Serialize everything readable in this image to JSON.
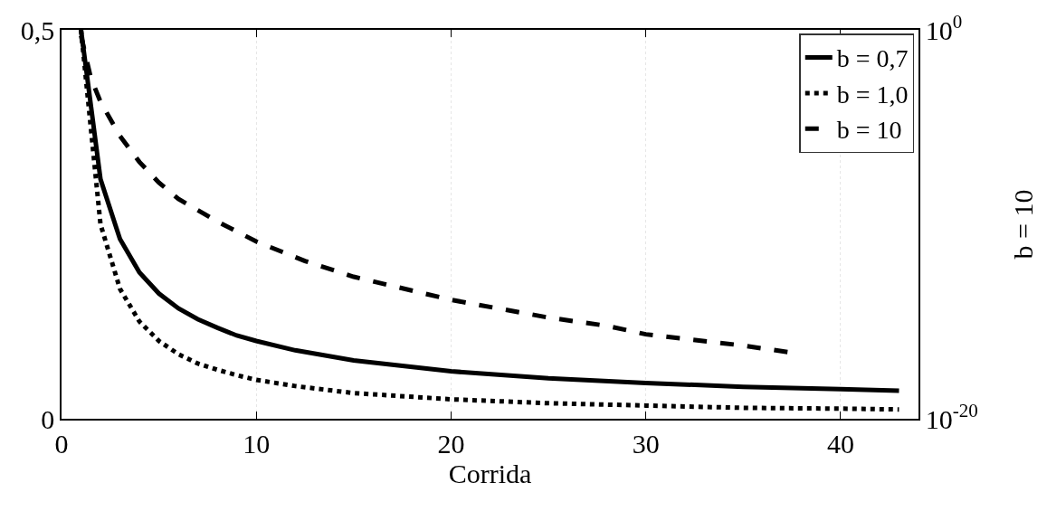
{
  "chart_data": {
    "type": "line",
    "xlabel": "Corrida",
    "y2label": "b = 10",
    "xlim": [
      0,
      44
    ],
    "xticks": [
      0,
      10,
      20,
      30,
      40
    ],
    "ylim": [
      0,
      0.5
    ],
    "yticks": [
      0,
      {
        "value": 0.5,
        "label": "0,5"
      }
    ],
    "y2lim": [
      1e-20,
      1
    ],
    "y2ticks": [
      {
        "value": 1e-20,
        "label": "10$^{-20}$"
      },
      {
        "value": 1,
        "label": "10$^{0}$"
      }
    ],
    "log": "y2",
    "grid": "x",
    "legend": "top right",
    "marker": "none",
    "series": [
      {
        "name": "b = 0,7",
        "color": "#000000",
        "line_style": "solid",
        "x": [
          1,
          2,
          3,
          4,
          5,
          6,
          7,
          8,
          9,
          10,
          12,
          15,
          20,
          25,
          30,
          35,
          40,
          43
        ],
        "values": [
          0.5,
          0.308,
          0.231,
          0.188,
          0.161,
          0.142,
          0.128,
          0.117,
          0.107,
          0.1,
          0.088,
          0.075,
          0.061,
          0.052,
          0.046,
          0.041,
          0.038,
          0.036
        ]
      },
      {
        "name": "b = 1,0",
        "color": "#000000",
        "line_style": "dotted",
        "x": [
          1,
          2,
          3,
          4,
          5,
          6,
          7,
          8,
          9,
          10,
          12,
          15,
          20,
          25,
          30,
          35,
          40,
          43
        ],
        "values": [
          0.5,
          0.25,
          0.167,
          0.125,
          0.1,
          0.083,
          0.071,
          0.063,
          0.056,
          0.05,
          0.042,
          0.033,
          0.025,
          0.02,
          0.017,
          0.014,
          0.013,
          0.012
        ]
      },
      {
        "name": "b = 10",
        "color": "#000000",
        "line_style": "dashed",
        "axis": "y2",
        "x": [
          1,
          1.5,
          2,
          3,
          4,
          5,
          6,
          8,
          10,
          12.5,
          15,
          20,
          25,
          28,
          30,
          35,
          37.5
        ],
        "values": [
          0.5,
          0.0035,
          0.0002,
          3.5e-06,
          1.6e-07,
          1.4e-08,
          2e-09,
          1.4e-10,
          1.3e-11,
          1.3e-12,
          2e-13,
          1.3e-14,
          1.6e-15,
          6e-16,
          2.2e-16,
          5.8e-17,
          2.5e-17
        ]
      }
    ]
  }
}
